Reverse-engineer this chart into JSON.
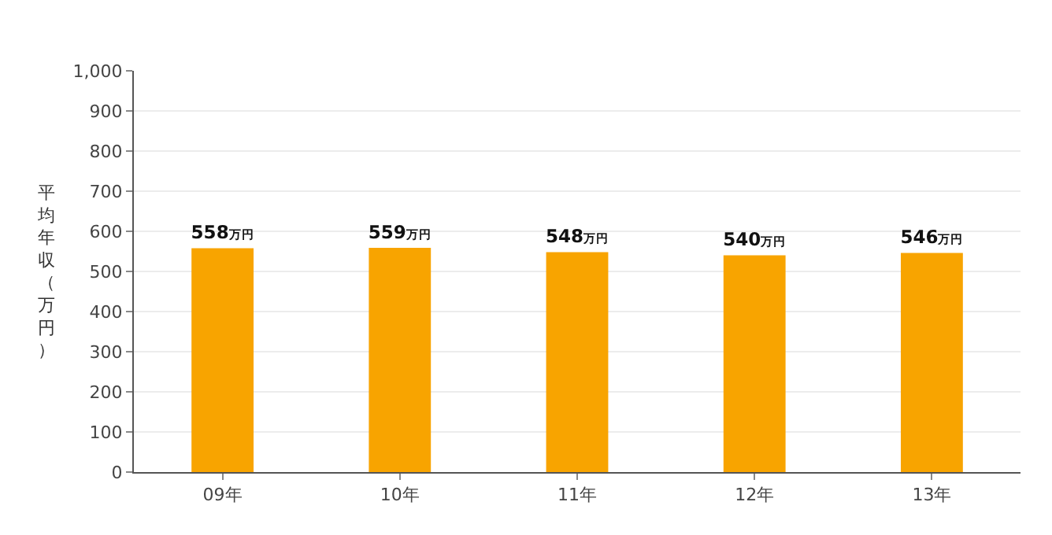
{
  "chart_data": {
    "type": "bar",
    "ylabel": "平均年収（万円）",
    "categories": [
      "09年",
      "10年",
      "11年",
      "12年",
      "13年"
    ],
    "values": [
      558,
      559,
      548,
      540,
      546
    ],
    "value_labels": [
      "558万円",
      "559万円",
      "548万円",
      "540万円",
      "546万円"
    ],
    "color": "#f8a400",
    "ylim": [
      0,
      1000
    ],
    "yticks": [
      0,
      100,
      200,
      300,
      400,
      500,
      600,
      700,
      800,
      900,
      {
        "value": 1000,
        "label": "1,000"
      }
    ],
    "grid": "y",
    "legend": false
  }
}
